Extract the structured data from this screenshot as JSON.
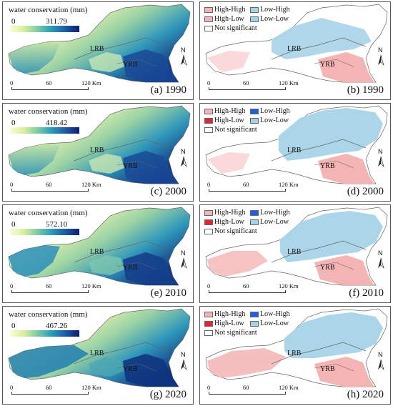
{
  "legend_title": "water conservation (mm)",
  "legend_min": "0",
  "basins": {
    "lrb": "LRB",
    "yrb": "YRB"
  },
  "north": "N",
  "scale": [
    "0",
    "60",
    "120 Km"
  ],
  "lisa_legend": [
    "High-High",
    "Low-High",
    "High-Low",
    "Low-Low",
    "Not significant"
  ],
  "lisa_colors": {
    "High-High": "#f4b4b4",
    "Low-High": "#1f5fe0",
    "High-Low": "#e8232b",
    "Low-Low": "#a7d3e8",
    "Not significant": "#ffffff"
  },
  "ramp_colors": [
    "#fbfdd7",
    "#d8ef9c",
    "#7dcaa6",
    "#2a9bbb",
    "#1f5aa3",
    "#0b1e6e"
  ],
  "panels": {
    "a": {
      "label": "(a) 1990",
      "max": "311.79"
    },
    "b": {
      "label": "(b) 1990"
    },
    "c": {
      "label": "(c) 2000",
      "max": "418.42"
    },
    "d": {
      "label": "(d) 2000"
    },
    "e": {
      "label": "(e) 2010",
      "max": "572.10"
    },
    "f": {
      "label": "(f) 2010"
    },
    "g": {
      "label": "(g) 2020",
      "max": "467.26"
    },
    "h": {
      "label": "(h) 2020"
    }
  }
}
